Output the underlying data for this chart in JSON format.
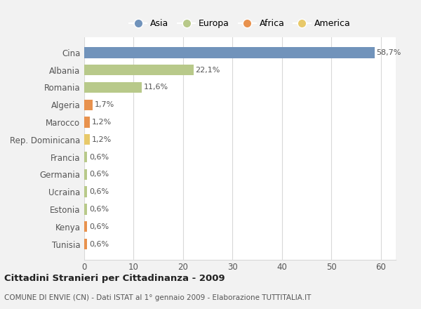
{
  "categories": [
    "Cina",
    "Albania",
    "Romania",
    "Algeria",
    "Marocco",
    "Rep. Dominicana",
    "Francia",
    "Germania",
    "Ucraina",
    "Estonia",
    "Kenya",
    "Tunisia"
  ],
  "values": [
    58.7,
    22.1,
    11.6,
    1.7,
    1.2,
    1.2,
    0.6,
    0.6,
    0.6,
    0.6,
    0.6,
    0.6
  ],
  "labels": [
    "58,7%",
    "22,1%",
    "11,6%",
    "1,7%",
    "1,2%",
    "1,2%",
    "0,6%",
    "0,6%",
    "0,6%",
    "0,6%",
    "0,6%",
    "0,6%"
  ],
  "colors": [
    "#7193bb",
    "#b8c98a",
    "#b8c98a",
    "#e8924e",
    "#e8924e",
    "#e8c96a",
    "#b8c98a",
    "#b8c98a",
    "#b8c98a",
    "#b8c98a",
    "#e8924e",
    "#e8924e"
  ],
  "legend_labels": [
    "Asia",
    "Europa",
    "Africa",
    "America"
  ],
  "legend_colors": [
    "#7193bb",
    "#b8c98a",
    "#e8924e",
    "#e8c96a"
  ],
  "xlim": [
    0,
    63
  ],
  "xticks": [
    0,
    10,
    20,
    30,
    40,
    50,
    60
  ],
  "title": "Cittadini Stranieri per Cittadinanza - 2009",
  "subtitle": "COMUNE DI ENVIE (CN) - Dati ISTAT al 1° gennaio 2009 - Elaborazione TUTTITALIA.IT",
  "bg_color": "#f2f2f2",
  "plot_bg_color": "#ffffff",
  "grid_color": "#d8d8d8"
}
